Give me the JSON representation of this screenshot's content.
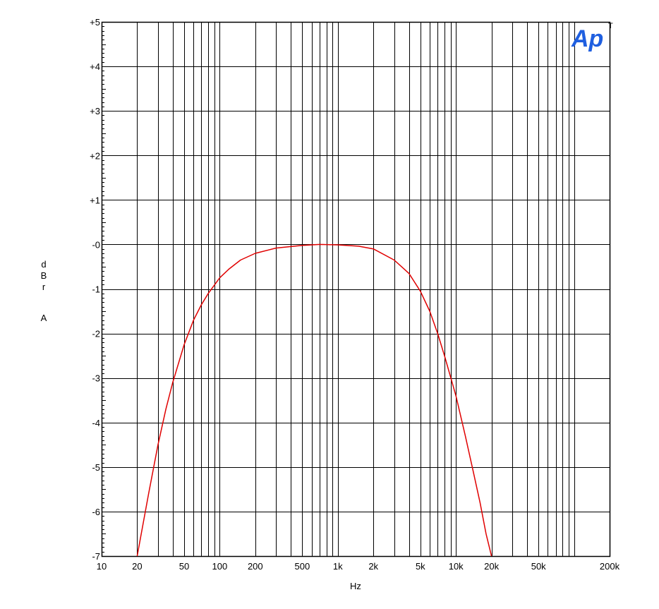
{
  "chart_data": {
    "type": "line",
    "title": "",
    "xlabel": "Hz",
    "ylabel_lines": [
      "d",
      "B",
      "r",
      "",
      "A"
    ],
    "xscale": "log",
    "xlim": [
      10,
      200000
    ],
    "ylim": [
      -7,
      5
    ],
    "grid": true,
    "x_ticks": [
      {
        "value": 10,
        "label": "10"
      },
      {
        "value": 20,
        "label": "20"
      },
      {
        "value": 50,
        "label": "50"
      },
      {
        "value": 100,
        "label": "100"
      },
      {
        "value": 200,
        "label": "200"
      },
      {
        "value": 500,
        "label": "500"
      },
      {
        "value": 1000,
        "label": "1k"
      },
      {
        "value": 2000,
        "label": "2k"
      },
      {
        "value": 5000,
        "label": "5k"
      },
      {
        "value": 10000,
        "label": "10k"
      },
      {
        "value": 20000,
        "label": "20k"
      },
      {
        "value": 50000,
        "label": "50k"
      },
      {
        "value": 200000,
        "label": "200k"
      }
    ],
    "y_ticks": [
      {
        "value": 5,
        "label": "+5"
      },
      {
        "value": 4,
        "label": "+4"
      },
      {
        "value": 3,
        "label": "+3"
      },
      {
        "value": 2,
        "label": "+2"
      },
      {
        "value": 1,
        "label": "+1"
      },
      {
        "value": 0,
        "label": "-0"
      },
      {
        "value": -1,
        "label": "-1"
      },
      {
        "value": -2,
        "label": "-2"
      },
      {
        "value": -3,
        "label": "-3"
      },
      {
        "value": -4,
        "label": "-4"
      },
      {
        "value": -5,
        "label": "-5"
      },
      {
        "value": -6,
        "label": "-6"
      },
      {
        "value": -7,
        "label": "-7"
      }
    ],
    "series": [
      {
        "color": "#e00000",
        "x": [
          20,
          25,
          30,
          35,
          40,
          50,
          60,
          70,
          80,
          100,
          120,
          150,
          200,
          300,
          500,
          700,
          1000,
          1500,
          2000,
          3000,
          4000,
          5000,
          6000,
          7000,
          8000,
          10000,
          12000,
          14000,
          16000,
          18000,
          20000
        ],
        "y": [
          -7.0,
          -5.6,
          -4.5,
          -3.7,
          -3.1,
          -2.25,
          -1.7,
          -1.35,
          -1.1,
          -0.75,
          -0.55,
          -0.35,
          -0.2,
          -0.08,
          -0.02,
          0.0,
          -0.01,
          -0.04,
          -0.1,
          -0.35,
          -0.65,
          -1.05,
          -1.5,
          -2.0,
          -2.5,
          -3.4,
          -4.3,
          -5.1,
          -5.8,
          -6.5,
          -7.0
        ]
      }
    ]
  },
  "logo": {
    "text": "Ap",
    "mark": "T",
    "color": "#1f5fe0"
  }
}
